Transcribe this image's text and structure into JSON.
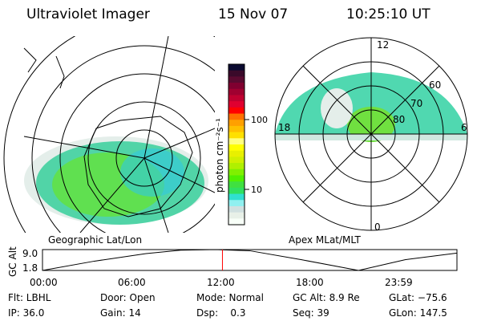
{
  "header": {
    "instrument": "Ultraviolet Imager",
    "date": "15 Nov 07",
    "time": "10:25:10 UT"
  },
  "left_map": {
    "label": "Geographic Lat/Lon"
  },
  "right_map": {
    "label": "Apex MLat/MLT",
    "mlt_labels": [
      "12",
      "18",
      "6",
      "0"
    ],
    "lat_labels": [
      "60",
      "70",
      "80"
    ]
  },
  "colorbar": {
    "unit_label": "photon cm⁻²s⁻¹",
    "ticks": [
      "100",
      "10"
    ],
    "colors": [
      "#0a0a30",
      "#3a0a2a",
      "#5a0a30",
      "#800030",
      "#a00030",
      "#c00030",
      "#e00030",
      "#ff0000",
      "#ff7000",
      "#ffa000",
      "#ffc000",
      "#ffe000",
      "#ffff80",
      "#ffff00",
      "#e8f000",
      "#d0f000",
      "#b0f000",
      "#80f000",
      "#50f000",
      "#40e040",
      "#30e060",
      "#30e0d0",
      "#90f0f0",
      "#d0e0e0",
      "#e8f0e8",
      "#f8fff8"
    ]
  },
  "chart_data": {
    "type": "line",
    "title": "",
    "ylabel": "GC Alt",
    "ylim": [
      1.8,
      9.0
    ],
    "yticks": [
      "9.0",
      "1.8"
    ],
    "xticks": [
      "00:00",
      "06:00",
      "12:00",
      "18:00",
      "23:59"
    ],
    "xlim": [
      0,
      24
    ],
    "series": [
      {
        "name": "GC Alt",
        "x": [
          0,
          3,
          6,
          8,
          10,
          12,
          15,
          18.3,
          21,
          24
        ],
        "y": [
          1.8,
          5.0,
          7.6,
          8.8,
          9.0,
          8.6,
          5.5,
          1.8,
          5.5,
          7.8
        ]
      }
    ],
    "current_time_hours": 10.42,
    "current_marker_color": "#ff0000"
  },
  "info": [
    [
      "Flt: LBHL",
      "Door: Open",
      "Mode: Normal",
      "GC Alt: 8.9 Re",
      "GLat: −75.6"
    ],
    [
      "IP: 36.0",
      "Gain: 14",
      "Dsp:    0.3",
      "Seq: 39",
      "GLon: 147.5"
    ]
  ]
}
